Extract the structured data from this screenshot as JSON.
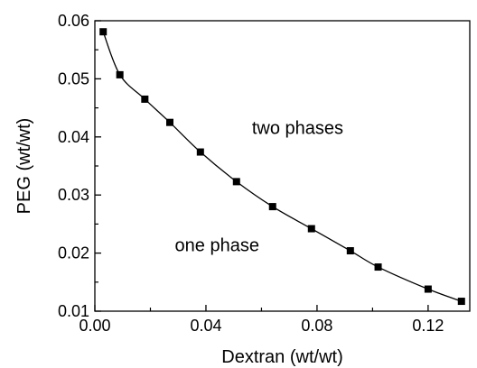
{
  "chart_data": {
    "type": "line",
    "title": "",
    "xlabel": "Dextran (wt/wt)",
    "ylabel": "PEG (wt/wt)",
    "xlim": [
      0.0,
      0.135
    ],
    "ylim": [
      0.01,
      0.06
    ],
    "xticks": [
      0.0,
      0.04,
      0.08,
      0.12
    ],
    "xtick_labels": [
      "0.00",
      "0.04",
      "0.08",
      "0.12"
    ],
    "xminor": [
      0.02,
      0.06,
      0.1
    ],
    "yticks": [
      0.01,
      0.02,
      0.03,
      0.04,
      0.05,
      0.06
    ],
    "ytick_labels": [
      "0.01",
      "0.02",
      "0.03",
      "0.04",
      "0.05",
      "0.06"
    ],
    "yminor": [
      0.015,
      0.025,
      0.035,
      0.045,
      0.055
    ],
    "grid": false,
    "legend": "none",
    "marker": "square",
    "line_color": "#000000",
    "series": [
      {
        "x": [
          0.003,
          0.009,
          0.018,
          0.027,
          0.038,
          0.051,
          0.064,
          0.078,
          0.092,
          0.102,
          0.12,
          0.132
        ],
        "y": [
          0.0581,
          0.0507,
          0.0465,
          0.0425,
          0.0374,
          0.0323,
          0.028,
          0.0242,
          0.0204,
          0.0176,
          0.0138,
          0.0117
        ]
      }
    ],
    "annotations": [
      {
        "text": "two phases",
        "x": 0.073,
        "y": 0.0405
      },
      {
        "text": "one phase",
        "x": 0.044,
        "y": 0.0203
      }
    ]
  }
}
